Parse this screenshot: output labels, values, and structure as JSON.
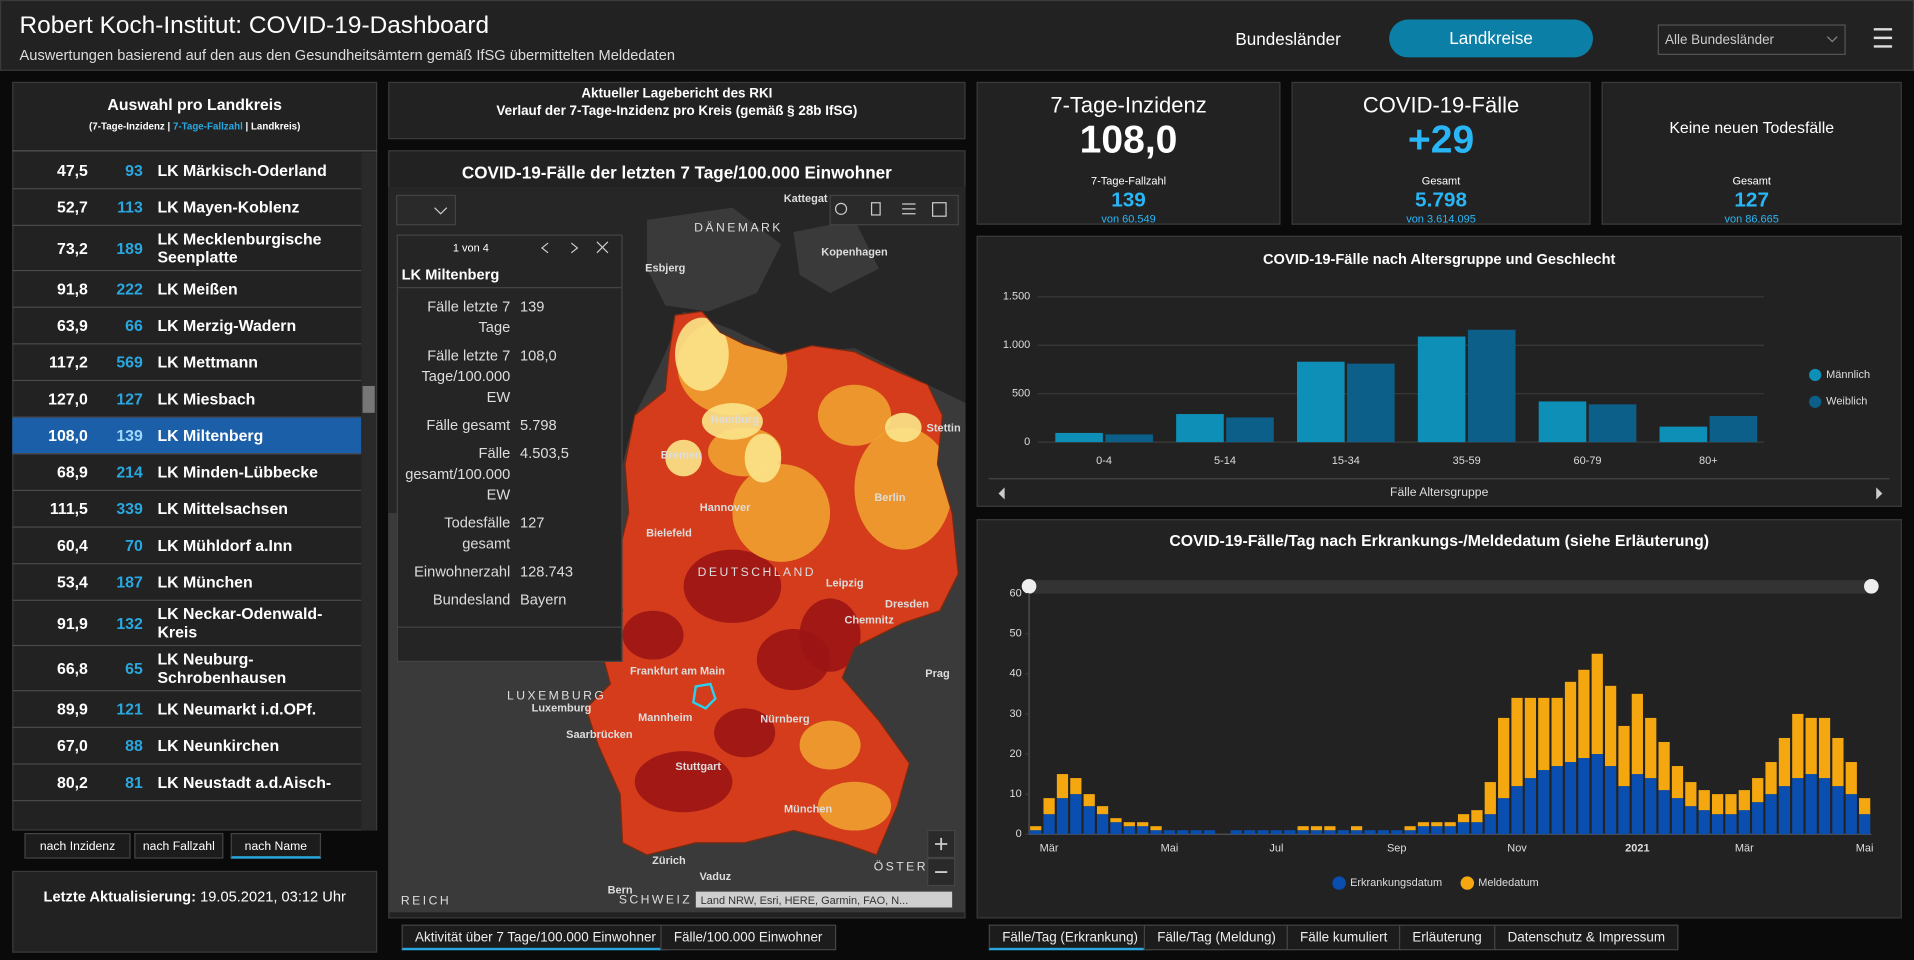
{
  "header": {
    "title": "Robert Koch-Institut: COVID-19-Dashboard",
    "subtitle": "Auswertungen basierend auf den aus den Gesundheitsämtern gemäß IfSG übermittelten Meldedaten",
    "nav": [
      "Bundesländer",
      "Landkreise"
    ],
    "dropdown": "Alle Bundesländer"
  },
  "district_list": {
    "title": "Auswahl pro Landkreis",
    "legend": [
      "(7-Tage-Inzidenz | ",
      "7-Tage-Fallzahl",
      " | Landkreis)"
    ],
    "rows": [
      {
        "incidence": "47,5",
        "cases": 93,
        "name": "LK Märkisch-Oderland"
      },
      {
        "incidence": "52,7",
        "cases": 113,
        "name": "LK Mayen-Koblenz"
      },
      {
        "incidence": "73,2",
        "cases": 189,
        "name": "LK Mecklenburgische Seenplatte"
      },
      {
        "incidence": "91,8",
        "cases": 222,
        "name": "LK Meißen"
      },
      {
        "incidence": "63,9",
        "cases": 66,
        "name": "LK Merzig-Wadern"
      },
      {
        "incidence": "117,2",
        "cases": 569,
        "name": "LK Mettmann"
      },
      {
        "incidence": "127,0",
        "cases": 127,
        "name": "LK Miesbach"
      },
      {
        "incidence": "108,0",
        "cases": 139,
        "name": "LK Miltenberg"
      },
      {
        "incidence": "68,9",
        "cases": 214,
        "name": "LK Minden-Lübbecke"
      },
      {
        "incidence": "111,5",
        "cases": 339,
        "name": "LK Mittelsachsen"
      },
      {
        "incidence": "60,4",
        "cases": 70,
        "name": "LK Mühldorf a.Inn"
      },
      {
        "incidence": "53,4",
        "cases": 187,
        "name": "LK München"
      },
      {
        "incidence": "91,9",
        "cases": 132,
        "name": "LK Neckar-Odenwald-Kreis"
      },
      {
        "incidence": "66,8",
        "cases": 65,
        "name": "LK Neuburg-Schrobenhausen"
      },
      {
        "incidence": "89,9",
        "cases": 121,
        "name": "LK Neumarkt i.d.OPf."
      },
      {
        "incidence": "67,0",
        "cases": 88,
        "name": "LK Neunkirchen"
      },
      {
        "incidence": "80,2",
        "cases": 81,
        "name": "LK Neustadt a.d.Aisch-"
      }
    ],
    "selected": 7,
    "sort_buttons": [
      "nach Inzidenz",
      "nach Fallzahl",
      "nach Name"
    ]
  },
  "update": {
    "label": "Letzte Aktualisierung:",
    "value": "19.05.2021, 03:12 Uhr"
  },
  "report": {
    "line1": "Aktueller Lagebericht des RKI",
    "line2": "Verlauf der 7-Tage-Inzidenz pro Kreis (gemäß § 28b IfSG)"
  },
  "map": {
    "title": "COVID-19-Fälle der letzten 7 Tage/100.000 Einwohner",
    "labels": [
      "DÄNEMARK",
      "Kattegat",
      "Esbjerg",
      "Kopenhagen",
      "Hamburg",
      "Bremen",
      "Stettin",
      "Hannover",
      "Berlin",
      "Bielefeld",
      "DEUTSCHLAND",
      "Leipzig",
      "Dresden",
      "Chemnitz",
      "Frankfurt am Main",
      "Prag",
      "LUXEMBURG",
      "Luxemburg",
      "Mannheim",
      "Nürnberg",
      "Saarbrücken",
      "Stuttgart",
      "München",
      "Zürich",
      "Vaduz",
      "Bern",
      "SCHWEIZ",
      "ÖSTER",
      "REICH"
    ],
    "attribution": "Land NRW, Esri, HERE, Garmin, FAO, N...",
    "popup": {
      "pager": "1 von 4",
      "name": "LK Miltenberg",
      "fields": [
        {
          "label": "Fälle letzte 7 Tage",
          "value": 139
        },
        {
          "label": "Fälle letzte 7 Tage/100.000 EW",
          "value": "108,0"
        },
        {
          "label": "Fälle gesamt",
          "value": "5.798"
        },
        {
          "label": "Fälle gesamt/100.000 EW",
          "value": "4.503,5"
        },
        {
          "label": "Todesfälle gesamt",
          "value": 127
        },
        {
          "label": "Einwohnerzahl",
          "value": "128.743"
        },
        {
          "label": "Bundesland",
          "value": "Bayern"
        }
      ]
    },
    "tabs": [
      "Aktivität über 7 Tage/100.000 Einwohner",
      "Fälle/100.000 Einwohner"
    ]
  },
  "kpis": [
    {
      "title": "7-Tage-Inzidenz",
      "value": "108,0",
      "sub_label": "7-Tage-Fallzahl",
      "sub_value": 139,
      "sub_note": "von 60.549"
    },
    {
      "title": "COVID-19-Fälle",
      "value": "+29",
      "sub_label": "Gesamt",
      "sub_value": "5.798",
      "sub_note": "von 3.614.095"
    },
    {
      "title": "Keine neuen Todesfälle",
      "sub_label": "Gesamt",
      "sub_value": 127,
      "sub_note": "von 86.665"
    }
  ],
  "chart_data": [
    {
      "type": "bar",
      "title": "COVID-19-Fälle nach Altersgruppe und Geschlecht",
      "x_label": "Fälle Altersgruppe",
      "categories": [
        "0-4",
        "5-14",
        "15-34",
        "35-59",
        "60-79",
        "80+"
      ],
      "series": [
        {
          "name": "Männlich",
          "color": "#0e8fb8",
          "values": [
            95,
            290,
            830,
            1090,
            420,
            160
          ]
        },
        {
          "name": "Weiblich",
          "color": "#0b5f88",
          "values": [
            80,
            255,
            810,
            1160,
            390,
            270
          ]
        }
      ],
      "ylim": [
        0,
        1500
      ],
      "yticks": [
        0,
        500,
        {
          "value": 1000,
          "label": "1.000"
        },
        {
          "value": 1500,
          "label": "1.500"
        }
      ],
      "grid": true,
      "legend": "right"
    },
    {
      "type": "stacked_bar",
      "title": "COVID-19-Fälle/Tag nach Erkrankungs-/Meldedatum (siehe Erläuterung)",
      "categories": [
        null,
        "Mär",
        null,
        null,
        null,
        null,
        null,
        null,
        null,
        null,
        "Mai",
        null,
        null,
        null,
        null,
        null,
        null,
        null,
        "Jul",
        null,
        null,
        null,
        null,
        null,
        null,
        null,
        null,
        "Sep",
        null,
        null,
        null,
        null,
        null,
        null,
        null,
        null,
        "Nov",
        null,
        null,
        null,
        null,
        null,
        null,
        null,
        null,
        "2021",
        null,
        null,
        null,
        null,
        null,
        null,
        null,
        "Mär",
        null,
        null,
        null,
        null,
        null,
        null,
        null,
        null,
        "Mai"
      ],
      "series": [
        {
          "name": "Erkrankungsdatum",
          "color": "#0a4fb0",
          "values": [
            1,
            5,
            9,
            10,
            7,
            5,
            3,
            2,
            2,
            1,
            1,
            1,
            1,
            1,
            0,
            1,
            1,
            1,
            1,
            1,
            1,
            1,
            1,
            1,
            1,
            1,
            1,
            1,
            1,
            2,
            2,
            2,
            3,
            3,
            5,
            9,
            12,
            14,
            16,
            17,
            18,
            19,
            20,
            17,
            12,
            15,
            14,
            11,
            9,
            7,
            6,
            5,
            5,
            6,
            8,
            10,
            12,
            14,
            15,
            14,
            12,
            10,
            5
          ]
        },
        {
          "name": "Meldedatum",
          "color": "#f5a70f",
          "values": [
            1,
            4,
            6,
            4,
            3,
            2,
            1,
            1,
            1,
            1,
            0,
            0,
            0,
            0,
            0,
            0,
            0,
            0,
            0,
            0,
            1,
            1,
            1,
            0,
            1,
            0,
            0,
            0,
            1,
            1,
            1,
            1,
            2,
            3,
            8,
            20,
            22,
            20,
            18,
            17,
            20,
            22,
            25,
            20,
            15,
            20,
            15,
            12,
            8,
            6,
            5,
            5,
            5,
            5,
            6,
            8,
            12,
            16,
            14,
            15,
            12,
            8,
            4
          ]
        }
      ],
      "ylim": [
        0,
        60
      ],
      "yticks": [
        0,
        10,
        20,
        30,
        40,
        50,
        60
      ],
      "grid": false,
      "legend": "bottom"
    }
  ],
  "chart_tabs": [
    "Fälle/Tag (Erkrankung)",
    "Fälle/Tag (Meldung)",
    "Fälle kumuliert",
    "Erläuterung",
    "Datenschutz & Impressum"
  ]
}
